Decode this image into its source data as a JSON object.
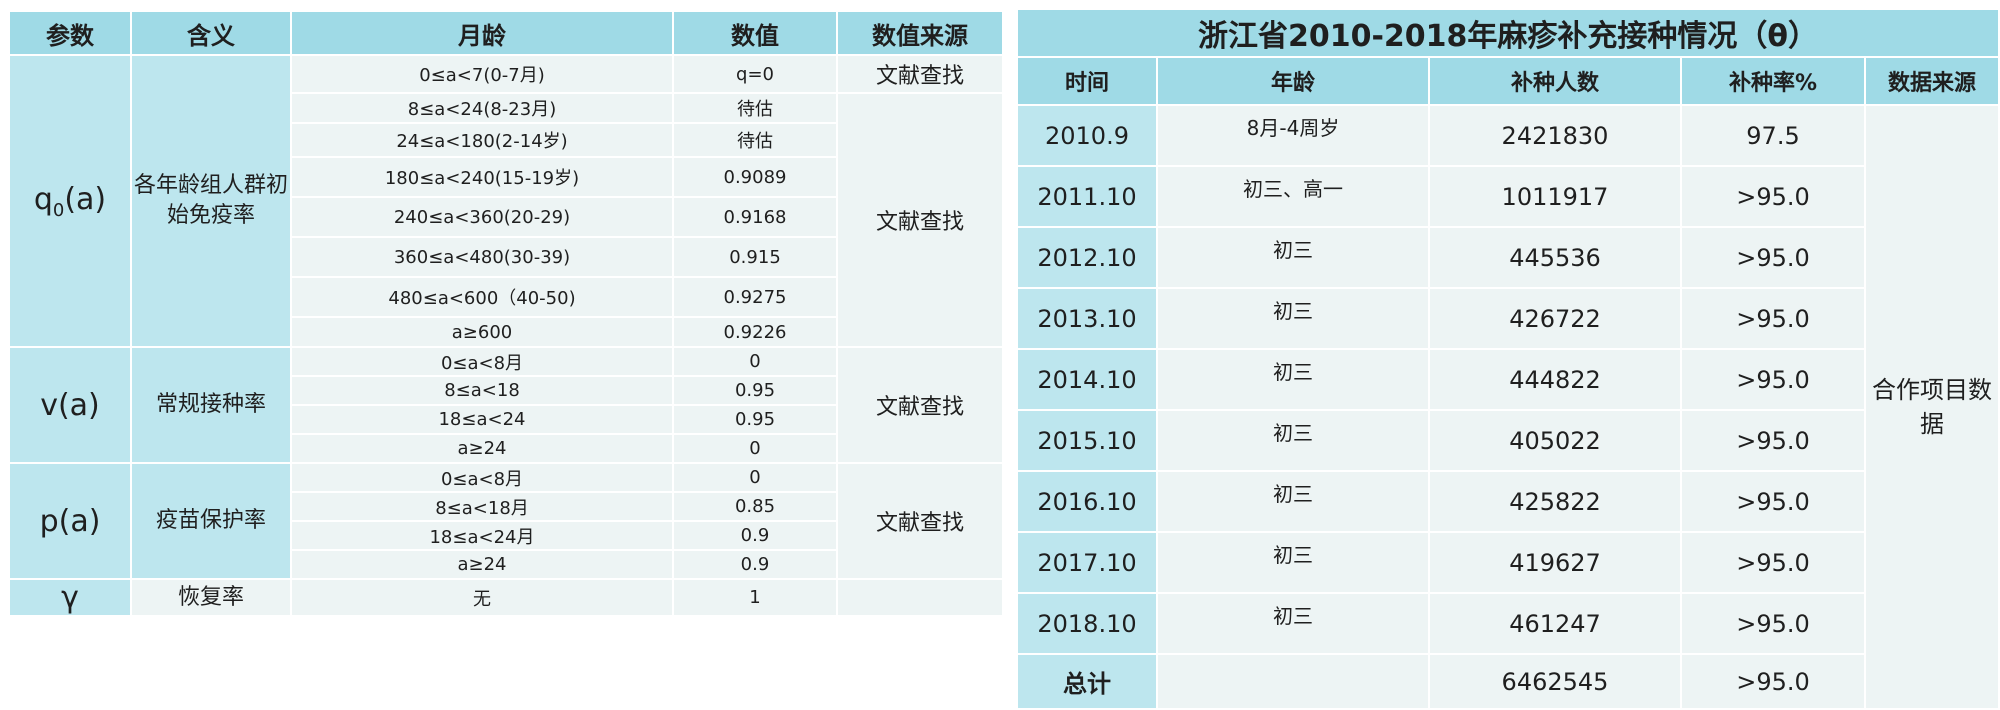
{
  "left": {
    "headers": [
      "参数",
      "含义",
      "月龄",
      "数值",
      "数值来源"
    ],
    "groups": [
      {
        "param": "q",
        "param_sub": "0",
        "param_tail": "(a)",
        "meaning": "各年龄组人群初始免疫率",
        "rows": [
          {
            "age": "0≤a<7(0-7月)",
            "value": "q=0",
            "source": "文献查找"
          },
          {
            "age": "8≤a<24(8-23月)",
            "value": "待估"
          },
          {
            "age": "24≤a<180(2-14岁)",
            "value": "待估"
          },
          {
            "age": "180≤a<240(15-19岁)",
            "value": "0.9089"
          },
          {
            "age": "240≤a<360(20-29)",
            "value": "0.9168"
          },
          {
            "age": "360≤a<480(30-39)",
            "value": "0.915"
          },
          {
            "age": "480≤a<600（40-50)",
            "value": "0.9275"
          },
          {
            "age": "a≥600",
            "value": "0.9226"
          }
        ],
        "source2": "文献查找"
      },
      {
        "param": "v(a)",
        "meaning": "常规接种率",
        "source": "文献查找",
        "rows": [
          {
            "age": "0≤a<8月",
            "value": "0"
          },
          {
            "age": "8≤a<18",
            "value": "0.95"
          },
          {
            "age": "18≤a<24",
            "value": "0.95"
          },
          {
            "age": "a≥24",
            "value": "0"
          }
        ]
      },
      {
        "param": "p(a)",
        "meaning": "疫苗保护率",
        "source": "文献查找",
        "rows": [
          {
            "age": "0≤a<8月",
            "value": "0"
          },
          {
            "age": "8≤a<18月",
            "value": "0.85"
          },
          {
            "age": "18≤a<24月",
            "value": "0.9"
          },
          {
            "age": "a≥24",
            "value": "0.9"
          }
        ]
      },
      {
        "param": "γ",
        "meaning": "恢复率",
        "rows": [
          {
            "age": "无",
            "value": "1"
          }
        ]
      }
    ]
  },
  "right": {
    "title": "浙江省2010-2018年麻疹补充接种情况（θ）",
    "headers": [
      "时间",
      "年龄",
      "补种人数",
      "补种率%",
      "数据来源"
    ],
    "source": "合作项目数据",
    "rows": [
      {
        "time": "2010.9",
        "age": "8月-4周岁",
        "count": "2421830",
        "rate": "97.5"
      },
      {
        "time": "2011.10",
        "age": "初三、高一",
        "count": "1011917",
        "rate": ">95.0"
      },
      {
        "time": "2012.10",
        "age": "初三",
        "count": "445536",
        "rate": ">95.0"
      },
      {
        "time": "2013.10",
        "age": "初三",
        "count": "426722",
        "rate": ">95.0"
      },
      {
        "time": "2014.10",
        "age": "初三",
        "count": "444822",
        "rate": ">95.0"
      },
      {
        "time": "2015.10",
        "age": "初三",
        "count": "405022",
        "rate": ">95.0"
      },
      {
        "time": "2016.10",
        "age": "初三",
        "count": "425822",
        "rate": ">95.0"
      },
      {
        "time": "2017.10",
        "age": "初三",
        "count": "419627",
        "rate": ">95.0"
      },
      {
        "time": "2018.10",
        "age": "初三",
        "count": "461247",
        "rate": ">95.0"
      }
    ],
    "total": {
      "label": "总计",
      "count": "6462545",
      "rate": ">95.0"
    }
  }
}
